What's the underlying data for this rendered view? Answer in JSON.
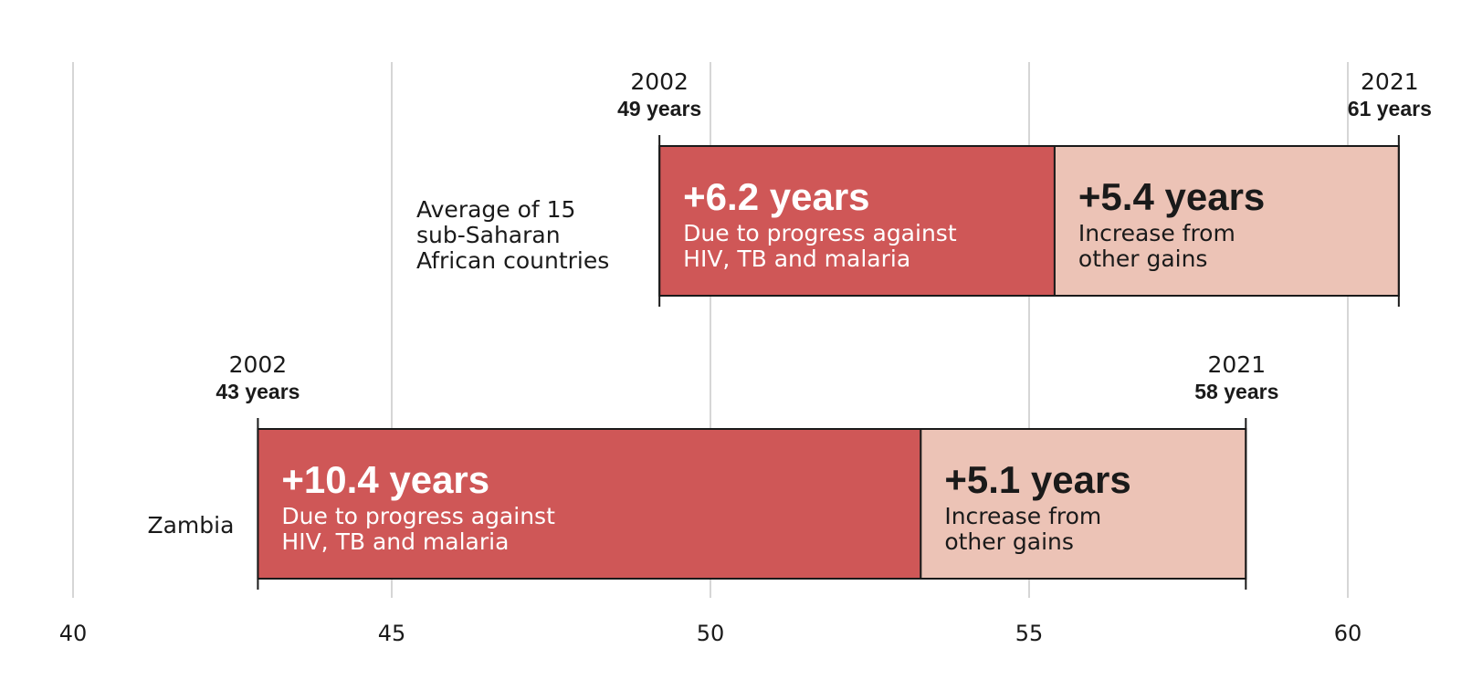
{
  "chart_data": {
    "type": "bar",
    "xlim": [
      40,
      62
    ],
    "xticks": [
      40,
      45,
      50,
      55,
      60
    ],
    "grid": true,
    "colors": {
      "progress": "#cf5757",
      "other": "#ecc3b6",
      "outline": "#1a1a1a",
      "grid": "#c8c8c8"
    },
    "rows": [
      {
        "label": [
          "Average of 15",
          "sub-Saharan",
          "African countries"
        ],
        "start": 49.2,
        "split": 55.4,
        "end": 60.8,
        "start_year": "2002",
        "start_value": "49 years",
        "end_year": "2021",
        "end_value": "61 years",
        "progress_value": "+6.2 years",
        "progress_text": [
          "Due to progress against",
          "HIV, TB and malaria"
        ],
        "other_value": "+5.4 years",
        "other_text": [
          "Increase from",
          "other gains"
        ]
      },
      {
        "label": [
          "Zambia"
        ],
        "start": 42.9,
        "split": 53.3,
        "end": 58.4,
        "start_year": "2002",
        "start_value": "43 years",
        "end_year": "2021",
        "end_value": "58 years",
        "progress_value": "+10.4 years",
        "progress_text": [
          "Due to progress against",
          "HIV, TB and malaria"
        ],
        "other_value": "+5.1 years",
        "other_text": [
          "Increase from",
          "other gains"
        ]
      }
    ]
  }
}
